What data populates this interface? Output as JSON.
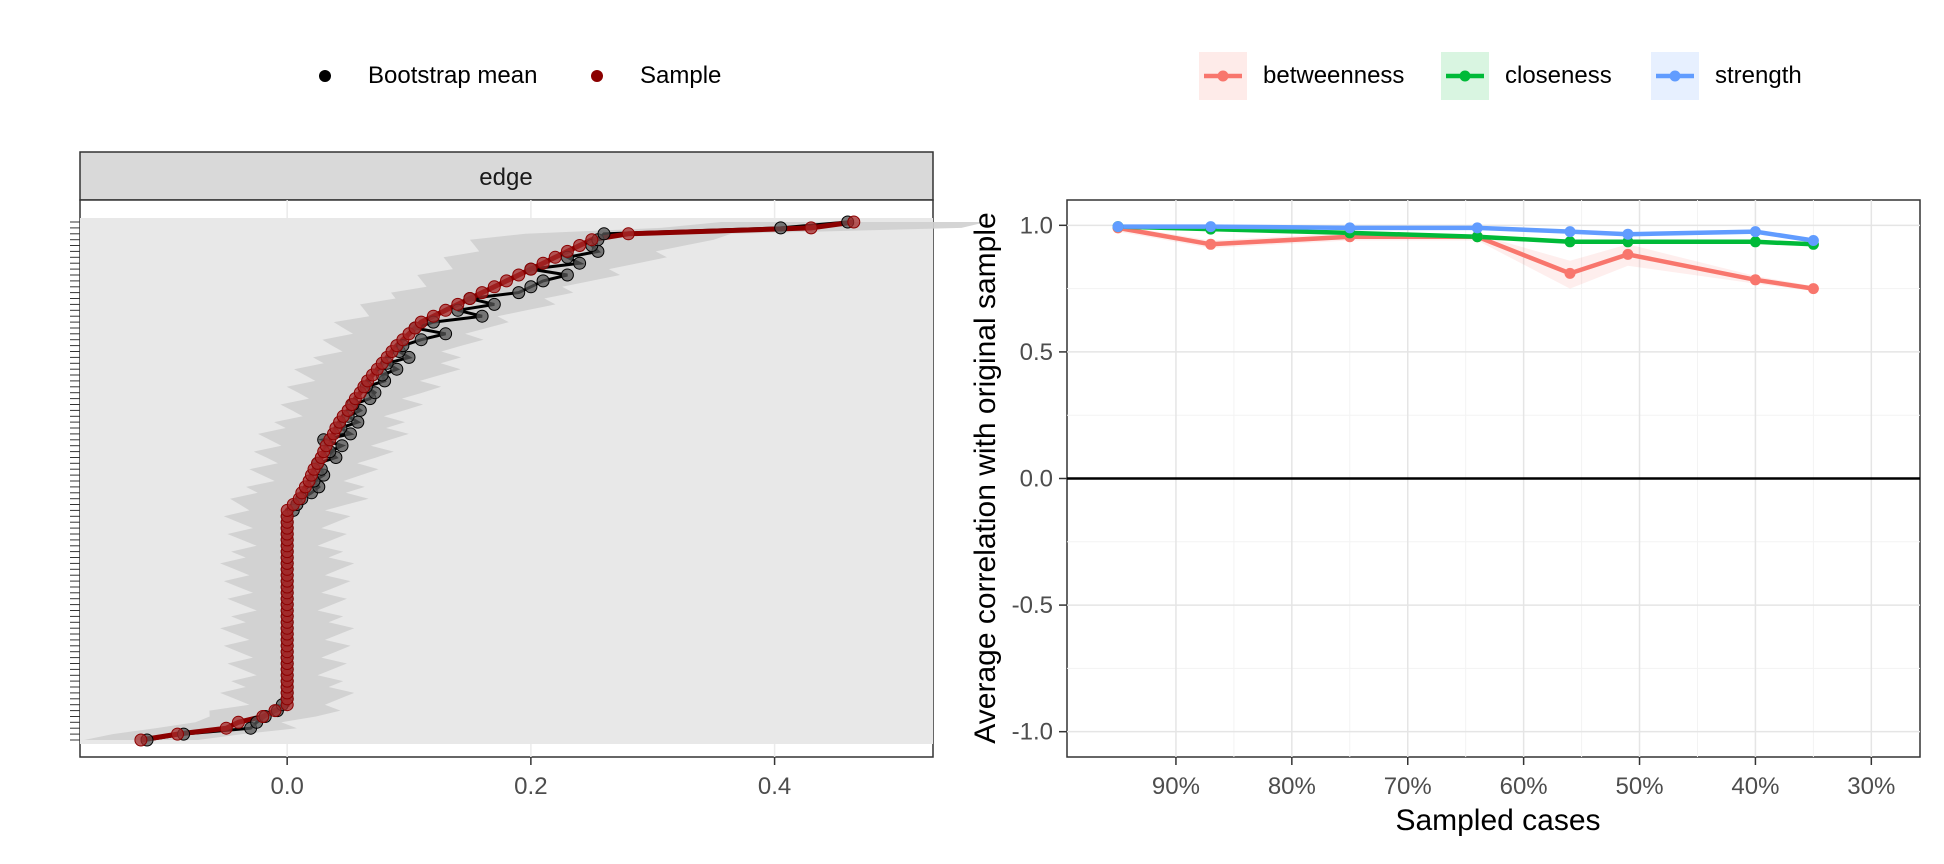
{
  "chart_data": [
    {
      "type": "scatter",
      "facet_label": "edge",
      "legend": [
        "Bootstrap mean",
        "Sample"
      ],
      "legend_position": "top",
      "xlim": [
        -0.17,
        0.53
      ],
      "x_ticks": [
        "0.0",
        "0.2",
        "0.4"
      ],
      "x_tick_values": [
        0.0,
        0.2,
        0.4
      ],
      "colors": {
        "bootstrap_mean": "#000000",
        "sample": "#8b0000",
        "ci_band": "#cfcfcf",
        "panel_bg": "#e8e8e8"
      },
      "series": [
        {
          "name": "Sample",
          "values": [
            -0.12,
            -0.09,
            -0.05,
            -0.04,
            -0.02,
            -0.01,
            0.0,
            0.0,
            0.0,
            0.0,
            0.0,
            0.0,
            0.0,
            0.0,
            0.0,
            0.0,
            0.0,
            0.0,
            0.0,
            0.0,
            0.0,
            0.0,
            0.0,
            0.0,
            0.0,
            0.0,
            0.0,
            0.0,
            0.0,
            0.0,
            0.0,
            0.0,
            0.0,
            0.0,
            0.0,
            0.0,
            0.0,
            0.0,
            0.0,
            0.0,
            0.005,
            0.01,
            0.012,
            0.015,
            0.018,
            0.02,
            0.022,
            0.025,
            0.028,
            0.03,
            0.032,
            0.035,
            0.038,
            0.04,
            0.043,
            0.046,
            0.05,
            0.053,
            0.056,
            0.06,
            0.063,
            0.066,
            0.07,
            0.074,
            0.078,
            0.082,
            0.086,
            0.09,
            0.095,
            0.1,
            0.105,
            0.11,
            0.12,
            0.13,
            0.14,
            0.15,
            0.16,
            0.17,
            0.18,
            0.19,
            0.2,
            0.21,
            0.22,
            0.23,
            0.24,
            0.25,
            0.28,
            0.43,
            0.465
          ]
        },
        {
          "name": "Bootstrap mean",
          "values": [
            -0.115,
            -0.085,
            -0.03,
            -0.025,
            -0.018,
            -0.008,
            -0.004,
            0.0,
            0.0,
            0.0,
            0.0,
            0.0,
            0.0,
            0.0,
            0.0,
            0.0,
            0.0,
            0.0,
            0.0,
            0.0,
            0.0,
            0.0,
            0.0,
            0.0,
            0.0,
            0.0,
            0.0,
            0.0,
            0.0,
            0.0,
            0.0,
            0.0,
            0.0,
            0.0,
            0.0,
            0.0,
            0.0,
            0.0,
            0.0,
            0.005,
            0.008,
            0.012,
            0.02,
            0.026,
            0.022,
            0.03,
            0.028,
            0.025,
            0.04,
            0.035,
            0.045,
            0.03,
            0.052,
            0.044,
            0.058,
            0.05,
            0.06,
            0.054,
            0.068,
            0.072,
            0.065,
            0.08,
            0.078,
            0.09,
            0.082,
            0.1,
            0.092,
            0.095,
            0.11,
            0.13,
            0.105,
            0.12,
            0.16,
            0.14,
            0.17,
            0.15,
            0.19,
            0.2,
            0.21,
            0.23,
            0.2,
            0.24,
            0.23,
            0.255,
            0.25,
            0.255,
            0.26,
            0.405,
            0.46
          ]
        }
      ]
    },
    {
      "type": "line",
      "x": [
        95,
        87,
        75,
        64,
        56,
        51,
        40,
        35
      ],
      "x_ticks": [
        "90%",
        "80%",
        "70%",
        "60%",
        "50%",
        "40%",
        "30%"
      ],
      "x_tick_values": [
        90,
        80,
        70,
        60,
        50,
        40,
        30
      ],
      "xlim": [
        99.4,
        25.8
      ],
      "x_reversed": true,
      "xlabel": "Sampled cases",
      "ylabel": "Average correlation with original sample",
      "ylim": [
        -1.1,
        1.1
      ],
      "y_ticks": [
        "1.0",
        "0.5",
        "0.0",
        "-0.5",
        "-1.0"
      ],
      "y_tick_values": [
        1.0,
        0.5,
        0.0,
        -0.5,
        -1.0
      ],
      "hline": 0,
      "legend_position": "top",
      "grid": true,
      "series": [
        {
          "name": "betweenness",
          "color": "#f8766d",
          "values": [
            0.99,
            0.925,
            0.955,
            0.955,
            0.81,
            0.885,
            0.785,
            0.75
          ],
          "band_lower": [
            0.975,
            0.91,
            0.94,
            0.94,
            0.75,
            0.84,
            0.77,
            0.74
          ],
          "band_upper": [
            1.0,
            0.94,
            0.97,
            0.965,
            0.86,
            0.925,
            0.8,
            0.76
          ]
        },
        {
          "name": "closeness",
          "color": "#00ba38",
          "values": [
            0.995,
            0.985,
            0.97,
            0.955,
            0.935,
            0.935,
            0.935,
            0.925
          ]
        },
        {
          "name": "strength",
          "color": "#619cff",
          "values": [
            0.995,
            0.995,
            0.99,
            0.99,
            0.975,
            0.965,
            0.975,
            0.94
          ]
        }
      ]
    }
  ]
}
